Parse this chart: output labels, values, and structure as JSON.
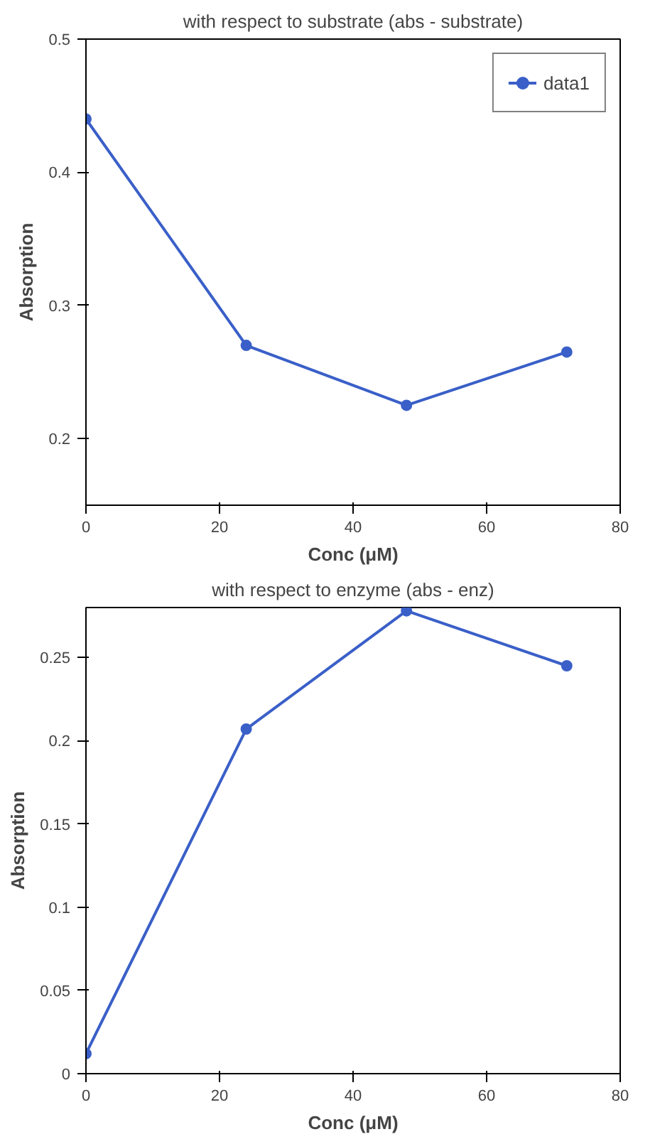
{
  "chart_data": [
    {
      "type": "line",
      "title": "with respect to substrate (abs - substrate)",
      "xlabel": "Conc (μM)",
      "ylabel": "Absorption",
      "x": [
        0,
        24,
        48,
        72
      ],
      "series": [
        {
          "name": "data1",
          "color": "#3a5fc8",
          "values": [
            0.44,
            0.27,
            0.225,
            0.265
          ]
        }
      ],
      "xlim": [
        0,
        80
      ],
      "xticks": [
        0,
        20,
        40,
        60,
        80
      ],
      "ylim": [
        0.15,
        0.5
      ],
      "yticks": [
        0.2,
        0.3,
        0.4,
        0.5
      ],
      "legend": "top right",
      "marker": "circle",
      "line_style": "solid"
    },
    {
      "type": "line",
      "title": "with respect to enzyme (abs - enz)",
      "xlabel": "Conc (μM)",
      "ylabel": "Absorption",
      "x": [
        0,
        24,
        48,
        72
      ],
      "series": [
        {
          "color": "#3a5fc8",
          "values": [
            0.012,
            0.207,
            0.278,
            0.245
          ]
        }
      ],
      "xlim": [
        0,
        80
      ],
      "xticks": [
        0,
        20,
        40,
        60,
        80
      ],
      "ylim": [
        0,
        0.28
      ],
      "yticks": [
        0,
        0.05,
        0.1,
        0.15,
        0.2,
        0.25
      ],
      "marker": "circle",
      "line_style": "solid"
    }
  ]
}
